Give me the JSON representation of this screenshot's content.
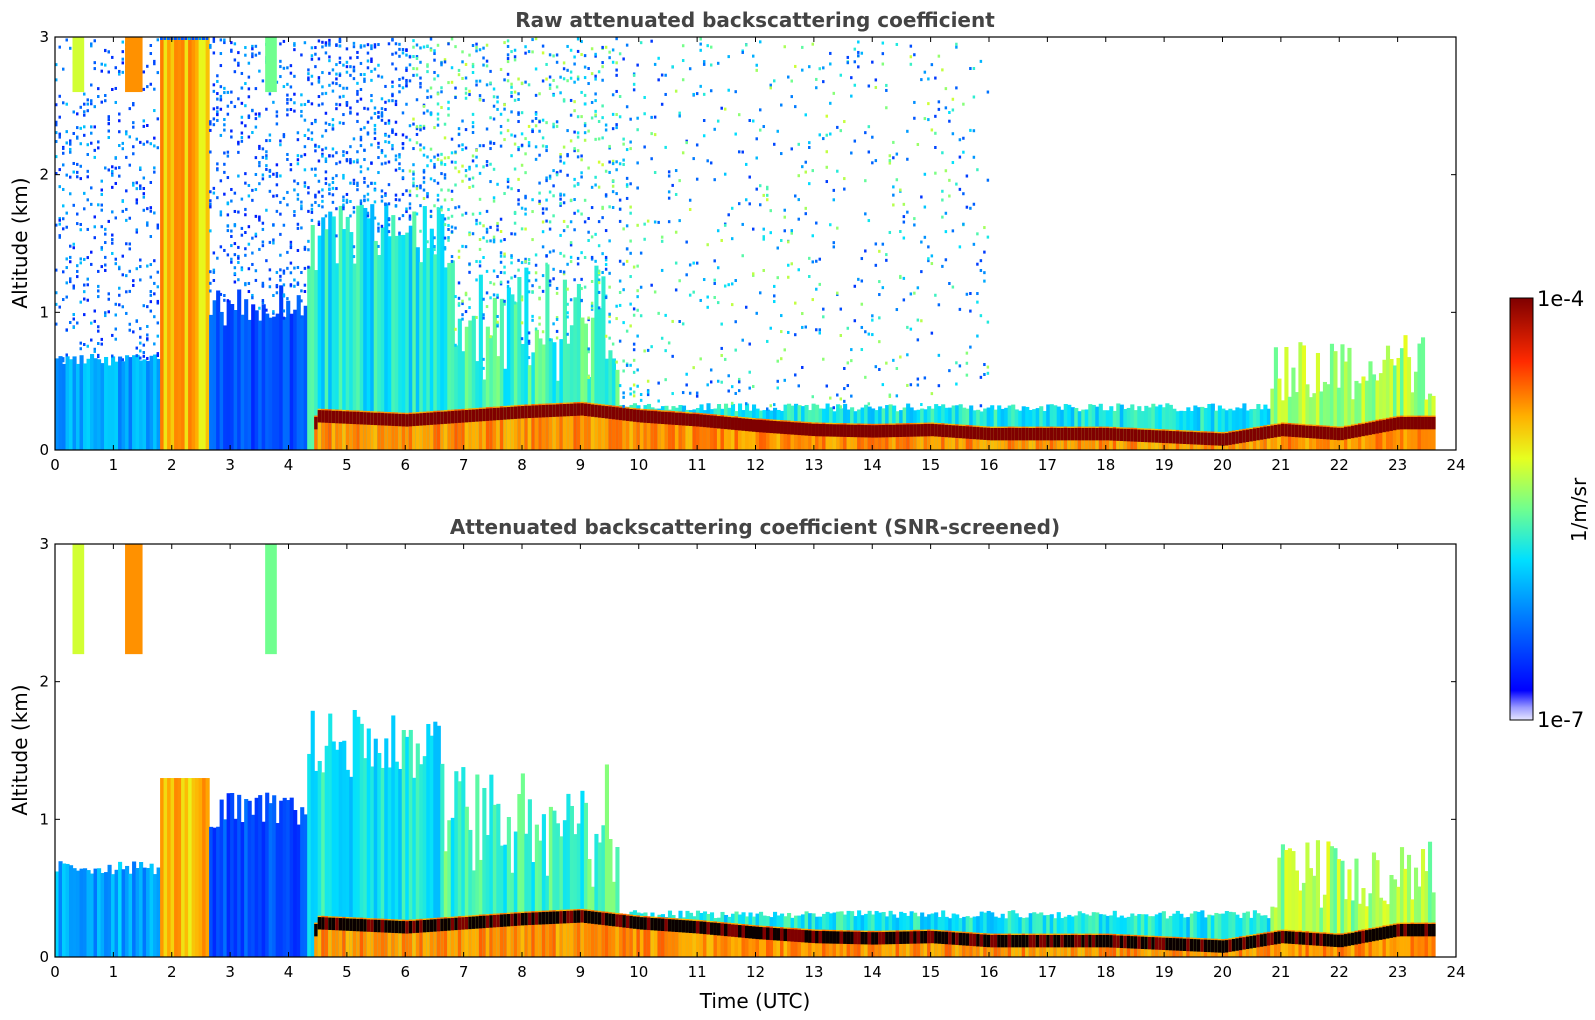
{
  "chart_data": [
    {
      "type": "heatmap",
      "title": "Raw attenuated backscattering coefficient",
      "xlabel": "",
      "ylabel": "Altitude (km)",
      "xlim": [
        0,
        24
      ],
      "ylim": [
        0,
        3
      ],
      "xticks": [
        "0",
        "1",
        "2",
        "3",
        "4",
        "5",
        "6",
        "7",
        "8",
        "9",
        "10",
        "11",
        "12",
        "13",
        "14",
        "15",
        "16",
        "17",
        "18",
        "19",
        "20",
        "21",
        "22",
        "23",
        "24"
      ],
      "yticks": [
        "0",
        "1",
        "2",
        "3"
      ],
      "colorscale": "jet",
      "colorbar_range": [
        "1e-7",
        "1e-4"
      ],
      "boundary_layer_top_km": [
        {
          "t": 4.5,
          "z": 0.25
        },
        {
          "t": 6,
          "z": 0.22
        },
        {
          "t": 7,
          "z": 0.25
        },
        {
          "t": 8,
          "z": 0.28
        },
        {
          "t": 9,
          "z": 0.3
        },
        {
          "t": 10,
          "z": 0.25
        },
        {
          "t": 11,
          "z": 0.22
        },
        {
          "t": 12,
          "z": 0.18
        },
        {
          "t": 13,
          "z": 0.15
        },
        {
          "t": 14,
          "z": 0.14
        },
        {
          "t": 15,
          "z": 0.15
        },
        {
          "t": 16,
          "z": 0.12
        },
        {
          "t": 17,
          "z": 0.12
        },
        {
          "t": 18,
          "z": 0.12
        },
        {
          "t": 19,
          "z": 0.1
        },
        {
          "t": 20,
          "z": 0.08
        },
        {
          "t": 21,
          "z": 0.15
        },
        {
          "t": 22,
          "z": 0.12
        },
        {
          "t": 23,
          "z": 0.2
        },
        {
          "t": 23.6,
          "z": 0.2
        }
      ]
    },
    {
      "type": "heatmap",
      "title": "Attenuated backscattering coefficient (SNR-screened)",
      "xlabel": "Time (UTC)",
      "ylabel": "Altitude (km)",
      "xlim": [
        0,
        24
      ],
      "ylim": [
        0,
        3
      ],
      "xticks": [
        "0",
        "1",
        "2",
        "3",
        "4",
        "5",
        "6",
        "7",
        "8",
        "9",
        "10",
        "11",
        "12",
        "13",
        "14",
        "15",
        "16",
        "17",
        "18",
        "19",
        "20",
        "21",
        "22",
        "23",
        "24"
      ],
      "yticks": [
        "0",
        "1",
        "2",
        "3"
      ],
      "colorscale": "jet",
      "colorbar_range": [
        "1e-7",
        "1e-4"
      ]
    }
  ],
  "colorbar": {
    "label": "1/m/sr",
    "max_label": "1e-4",
    "min_label": "1e-7",
    "colors": [
      "#7f0000",
      "#ff0000",
      "#ff7f00",
      "#ffff00",
      "#7fff7f",
      "#00ffff",
      "#007fff",
      "#0000ff",
      "#00008f"
    ]
  }
}
